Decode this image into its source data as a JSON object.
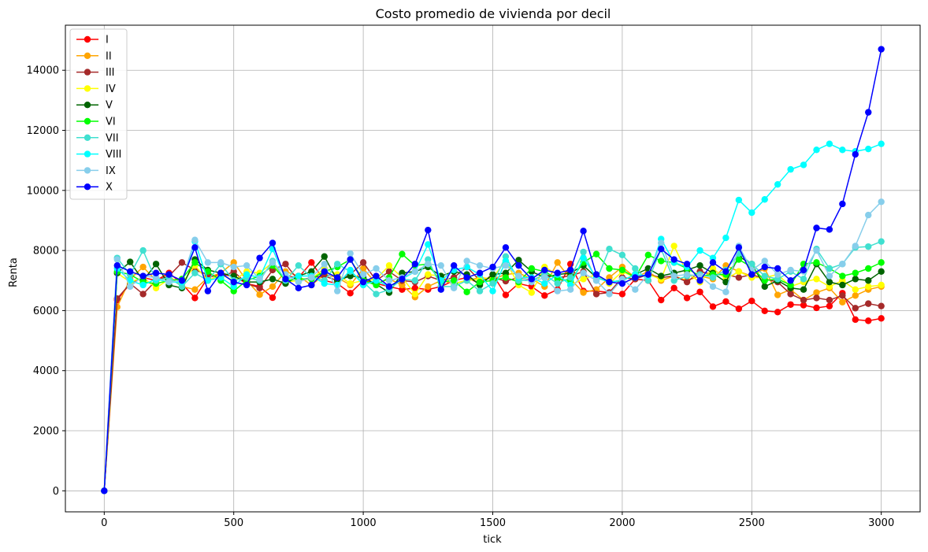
{
  "chart_data": {
    "type": "line",
    "title": "Costo promedio de vivienda por decil",
    "xlabel": "tick",
    "ylabel": "Renta",
    "xlim": [
      -150,
      3150
    ],
    "ylim": [
      -700,
      15500
    ],
    "xticks": [
      0,
      500,
      1000,
      1500,
      2000,
      2500,
      3000
    ],
    "yticks": [
      0,
      2000,
      4000,
      6000,
      8000,
      10000,
      12000,
      14000
    ],
    "grid": true,
    "legend_position": "top-left",
    "marker": "circle",
    "x": [
      0,
      50,
      100,
      150,
      200,
      250,
      300,
      350,
      400,
      450,
      500,
      550,
      600,
      650,
      700,
      750,
      800,
      850,
      900,
      950,
      1000,
      1050,
      1100,
      1150,
      1200,
      1250,
      1300,
      1350,
      1400,
      1450,
      1500,
      1550,
      1600,
      1650,
      1700,
      1750,
      1800,
      1850,
      1900,
      1950,
      2000,
      2050,
      2100,
      2150,
      2200,
      2250,
      2300,
      2350,
      2400,
      2450,
      2500,
      2550,
      2600,
      2650,
      2700,
      2750,
      2800,
      2850,
      2900,
      2950,
      3000
    ],
    "series": [
      {
        "name": "I",
        "color": "#ff0000",
        "values": [
          0,
          6350,
          6900,
          7100,
          7000,
          7250,
          6900,
          6420,
          7100,
          7200,
          7150,
          6900,
          6800,
          6430,
          7150,
          7100,
          7600,
          7000,
          6900,
          6580,
          7000,
          6900,
          6800,
          6700,
          6750,
          6700,
          6800,
          7000,
          7100,
          6900,
          7200,
          6520,
          6900,
          6800,
          6500,
          6700,
          7550,
          6650,
          6650,
          6600,
          6550,
          7050,
          7000,
          6350,
          6750,
          6420,
          6620,
          6130,
          6300,
          6060,
          6320,
          5990,
          5950,
          6200,
          6180,
          6090,
          6150,
          6580,
          5700,
          5660,
          5740
        ]
      },
      {
        "name": "II",
        "color": "#ffa500",
        "values": [
          0,
          6120,
          7050,
          7450,
          7000,
          7150,
          6800,
          6700,
          7100,
          7250,
          7600,
          7000,
          6530,
          6800,
          7300,
          7150,
          6850,
          7200,
          7100,
          6850,
          7400,
          6900,
          7050,
          6850,
          6450,
          6800,
          7000,
          6900,
          7000,
          7100,
          7050,
          7200,
          7250,
          7050,
          6800,
          7600,
          7050,
          6600,
          6700,
          7100,
          7450,
          7100,
          7300,
          7000,
          7150,
          7000,
          7150,
          7050,
          7500,
          7300,
          7150,
          7400,
          6520,
          6700,
          6350,
          6600,
          6750,
          6280,
          6500,
          6700,
          6800
        ]
      },
      {
        "name": "III",
        "color": "#a52a2a",
        "values": [
          0,
          6400,
          6900,
          6550,
          7000,
          7150,
          7600,
          7350,
          7200,
          7100,
          7300,
          6900,
          6750,
          7350,
          7550,
          7000,
          7100,
          7150,
          7000,
          7200,
          7600,
          7000,
          7300,
          7000,
          6950,
          7150,
          7000,
          7100,
          7450,
          7000,
          7100,
          6980,
          7100,
          7000,
          7200,
          7100,
          7150,
          7300,
          6550,
          6600,
          7100,
          7050,
          7200,
          7100,
          7150,
          6950,
          7300,
          7200,
          7200,
          7100,
          7200,
          7050,
          6950,
          6550,
          6350,
          6420,
          6350,
          6500,
          6080,
          6230,
          6150
        ]
      },
      {
        "name": "IV",
        "color": "#ffff00",
        "values": [
          0,
          7250,
          6950,
          7100,
          6750,
          7050,
          6900,
          7500,
          7000,
          7200,
          7000,
          7300,
          7250,
          7600,
          6950,
          7000,
          7050,
          7400,
          7200,
          6900,
          7000,
          7050,
          7500,
          7100,
          6550,
          7200,
          7150,
          6900,
          7000,
          7050,
          7100,
          7650,
          6850,
          6600,
          7450,
          7200,
          6850,
          7050,
          7200,
          6900,
          7300,
          7100,
          7200,
          7050,
          8150,
          7250,
          6950,
          7400,
          7050,
          7300,
          7100,
          7100,
          7200,
          6800,
          6950,
          7050,
          6800,
          7000,
          6700,
          6800,
          6850
        ]
      },
      {
        "name": "V",
        "color": "#006400",
        "values": [
          0,
          7250,
          7620,
          7000,
          7550,
          6850,
          6750,
          7700,
          7350,
          7250,
          7150,
          6950,
          6950,
          7050,
          6900,
          7150,
          7300,
          7800,
          7000,
          7150,
          7100,
          6880,
          6600,
          7250,
          7300,
          7450,
          7150,
          7300,
          7200,
          6850,
          7200,
          7250,
          7680,
          7300,
          7100,
          7200,
          7250,
          7500,
          7100,
          6950,
          7000,
          7200,
          7400,
          7150,
          7250,
          7350,
          7500,
          7250,
          6950,
          7800,
          7550,
          6800,
          7000,
          6750,
          6700,
          7550,
          6950,
          6850,
          7050,
          7000,
          7300
        ]
      },
      {
        "name": "VI",
        "color": "#00ff00",
        "values": [
          0,
          7300,
          7200,
          6950,
          6900,
          7000,
          7050,
          7600,
          7300,
          7000,
          6650,
          7000,
          7150,
          7500,
          7000,
          7050,
          7050,
          7300,
          7450,
          7700,
          7000,
          6850,
          7100,
          7880,
          7500,
          7550,
          6950,
          7000,
          6620,
          6950,
          7000,
          7100,
          6950,
          7400,
          7300,
          7050,
          7000,
          7600,
          7880,
          7400,
          7350,
          7100,
          7850,
          7650,
          7600,
          7400,
          7150,
          7200,
          7200,
          7700,
          7450,
          7000,
          7050,
          6850,
          7550,
          7600,
          7400,
          7150,
          7250,
          7400,
          7600
        ]
      },
      {
        "name": "VII",
        "color": "#40e0d0",
        "values": [
          0,
          7750,
          7200,
          8000,
          7000,
          7100,
          6800,
          7250,
          7000,
          7550,
          7000,
          7100,
          7000,
          7650,
          7000,
          7500,
          7100,
          7000,
          7550,
          7300,
          6950,
          6550,
          6700,
          7050,
          7000,
          7700,
          6800,
          6800,
          7000,
          6650,
          6900,
          7800,
          7000,
          7000,
          7200,
          6900,
          7100,
          7950,
          7000,
          8050,
          7850,
          7400,
          7000,
          8050,
          7000,
          7150,
          7200,
          7100,
          7350,
          7900,
          7550,
          7150,
          7050,
          7300,
          7050,
          8050,
          7400,
          7550,
          8100,
          8130,
          8300
        ]
      },
      {
        "name": "VIII",
        "color": "#00ffff",
        "values": [
          0,
          7400,
          7000,
          6850,
          7050,
          6950,
          6950,
          8300,
          7000,
          7100,
          6800,
          7200,
          7100,
          8050,
          7050,
          7150,
          7150,
          6900,
          6850,
          7350,
          6850,
          7000,
          6800,
          7050,
          7300,
          8200,
          7000,
          7350,
          7450,
          7200,
          6650,
          7650,
          7100,
          7100,
          6900,
          7200,
          6850,
          7750,
          7100,
          6950,
          7000,
          7200,
          7150,
          8380,
          7600,
          7450,
          8000,
          7750,
          8420,
          9680,
          9260,
          9700,
          10200,
          10700,
          10850,
          11350,
          11550,
          11350,
          11300,
          11380,
          11550
        ]
      },
      {
        "name": "IX",
        "color": "#87ceeb",
        "values": [
          0,
          7700,
          6800,
          7150,
          7100,
          6950,
          7000,
          8350,
          7600,
          7600,
          7450,
          7500,
          7050,
          7600,
          7200,
          6950,
          7100,
          7550,
          6650,
          7900,
          7200,
          7400,
          7000,
          7100,
          7300,
          7550,
          7500,
          6750,
          7650,
          7500,
          7400,
          7500,
          7150,
          6950,
          7100,
          6650,
          6700,
          7250,
          7000,
          6550,
          7050,
          6700,
          7200,
          8250,
          7150,
          7200,
          7150,
          6800,
          6620,
          8150,
          7350,
          7650,
          7200,
          7350,
          7300,
          8000,
          7150,
          7550,
          8150,
          9180,
          9620
        ]
      },
      {
        "name": "X",
        "color": "#0000ff",
        "values": [
          0,
          7500,
          7300,
          7150,
          7250,
          7200,
          7000,
          8100,
          6650,
          7250,
          6950,
          6850,
          7750,
          8250,
          7050,
          6750,
          6850,
          7300,
          7100,
          7700,
          6950,
          7150,
          6800,
          7050,
          7550,
          8680,
          6700,
          7500,
          7100,
          7250,
          7450,
          8100,
          7500,
          7050,
          7350,
          7250,
          7350,
          8650,
          7200,
          6950,
          6900,
          7100,
          7200,
          8050,
          7700,
          7550,
          7000,
          7600,
          7300,
          8100,
          7200,
          7450,
          7400,
          7000,
          7350,
          8750,
          8700,
          9550,
          11200,
          12600,
          14700
        ]
      }
    ]
  }
}
